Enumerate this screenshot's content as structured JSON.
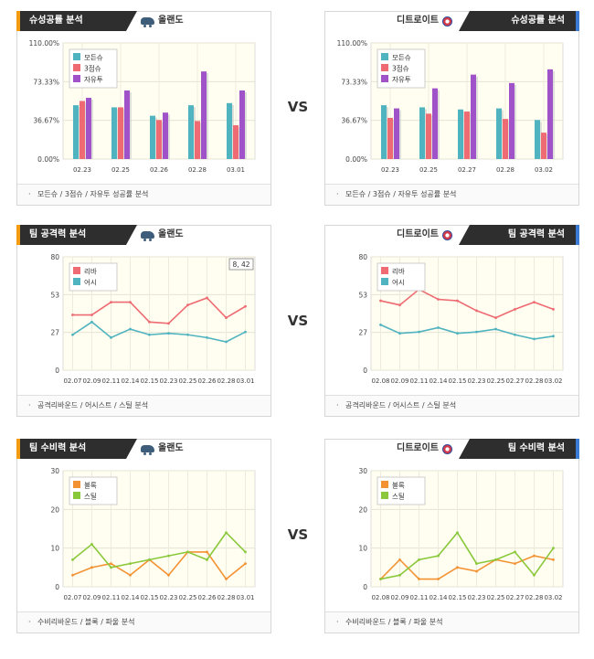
{
  "vs_label": "VS",
  "sections": [
    {
      "key": "success",
      "left": {
        "title": "슈성공률 분석",
        "team": "올랜도",
        "team_icon": "car-icon",
        "footer": "모든슈 / 3점슈 / 자유투 성공률 분석"
      },
      "right": {
        "title": "슈성공률 분석",
        "team": "디트로이트",
        "team_icon": "flag-icon",
        "footer": "모든슈 / 3점슈 / 자유투 성공률 분석"
      }
    },
    {
      "key": "offense",
      "left": {
        "title": "팀 공격력 분석",
        "team": "올랜도",
        "team_icon": "car-icon",
        "footer": "공격리바운드 / 어시스트 / 스틸 분석",
        "tooltip": "8, 42"
      },
      "right": {
        "title": "팀 공격력 분석",
        "team": "디트로이트",
        "team_icon": "flag-icon",
        "footer": "공격리바운드 / 어시스트 / 스틸 분석"
      }
    },
    {
      "key": "defense",
      "left": {
        "title": "팀 수비력 분석",
        "team": "올랜도",
        "team_icon": "car-icon",
        "footer": "수비리바운드 / 블록 / 파울 분석"
      },
      "right": {
        "title": "팀 수비력 분석",
        "team": "디트로이트",
        "team_icon": "flag-icon",
        "footer": "수비리바운드 / 블록 / 파울 분석"
      }
    }
  ],
  "chart_data": [
    {
      "id": "success-left",
      "type": "bar",
      "categories": [
        "02.23",
        "02.25",
        "02.26",
        "02.28",
        "03.01"
      ],
      "ylim": [
        0,
        110
      ],
      "y_ticks": [
        "0.00%",
        "36.67%",
        "73.33%",
        "110.00%"
      ],
      "legend_position": "top-left",
      "series": [
        {
          "name": "모든슈",
          "color": "#4fb3c0",
          "values": [
            51,
            49,
            41,
            51,
            53
          ]
        },
        {
          "name": "3점슈",
          "color": "#ee6b73",
          "values": [
            55,
            49,
            37,
            36,
            32
          ]
        },
        {
          "name": "자유투",
          "color": "#a052c9",
          "values": [
            58,
            65,
            44,
            83,
            65
          ]
        }
      ]
    },
    {
      "id": "success-right",
      "type": "bar",
      "categories": [
        "02.23",
        "02.25",
        "02.27",
        "02.28",
        "03.02"
      ],
      "ylim": [
        0,
        110
      ],
      "y_ticks": [
        "0.00%",
        "36.67%",
        "73.33%",
        "110.00%"
      ],
      "legend_position": "top-left",
      "series": [
        {
          "name": "모든슈",
          "color": "#4fb3c0",
          "values": [
            51,
            49,
            47,
            48,
            37
          ]
        },
        {
          "name": "3점슈",
          "color": "#ee6b73",
          "values": [
            39,
            43,
            45,
            38,
            25
          ]
        },
        {
          "name": "자유투",
          "color": "#a052c9",
          "values": [
            48,
            67,
            80,
            72,
            85
          ]
        }
      ]
    },
    {
      "id": "offense-left",
      "type": "line",
      "categories": [
        "02.07",
        "02.09",
        "02.11",
        "02.14",
        "02.15",
        "02.23",
        "02.25",
        "02.26",
        "02.28",
        "03.01"
      ],
      "ylim": [
        0,
        80
      ],
      "y_ticks": [
        "0",
        "27",
        "53",
        "80"
      ],
      "legend_position": "top-left",
      "series": [
        {
          "name": "리바",
          "color": "#ee6b73",
          "values": [
            39,
            39,
            48,
            48,
            34,
            33,
            46,
            51,
            37,
            45
          ]
        },
        {
          "name": "어시",
          "color": "#4fb3c0",
          "values": [
            25,
            34,
            23,
            29,
            25,
            26,
            25,
            23,
            20,
            27
          ]
        }
      ]
    },
    {
      "id": "offense-right",
      "type": "line",
      "categories": [
        "02.08",
        "02.09",
        "02.11",
        "02.14",
        "02.15",
        "02.23",
        "02.25",
        "02.27",
        "02.28",
        "03.02"
      ],
      "ylim": [
        0,
        80
      ],
      "y_ticks": [
        "0",
        "27",
        "53",
        "80"
      ],
      "legend_position": "top-left",
      "series": [
        {
          "name": "리바",
          "color": "#ee6b73",
          "values": [
            49,
            46,
            57,
            50,
            49,
            42,
            37,
            43,
            48,
            43
          ]
        },
        {
          "name": "어시",
          "color": "#4fb3c0",
          "values": [
            32,
            26,
            27,
            30,
            26,
            27,
            29,
            25,
            22,
            24
          ]
        }
      ]
    },
    {
      "id": "defense-left",
      "type": "line",
      "categories": [
        "02.07",
        "02.09",
        "02.11",
        "02.14",
        "02.15",
        "02.23",
        "02.25",
        "02.26",
        "02.28",
        "03.01"
      ],
      "ylim": [
        0,
        30
      ],
      "y_ticks": [
        "0",
        "10",
        "20",
        "30"
      ],
      "legend_position": "top-left",
      "series": [
        {
          "name": "블록",
          "color": "#f39233",
          "values": [
            3,
            5,
            6,
            3,
            7,
            3,
            9,
            9,
            2,
            6
          ]
        },
        {
          "name": "스틸",
          "color": "#8ac83b",
          "values": [
            7,
            11,
            5,
            6,
            7,
            8,
            9,
            7,
            14,
            9
          ]
        }
      ]
    },
    {
      "id": "defense-right",
      "type": "line",
      "categories": [
        "02.08",
        "02.09",
        "02.11",
        "02.14",
        "02.15",
        "02.23",
        "02.25",
        "02.27",
        "02.28",
        "03.02"
      ],
      "ylim": [
        0,
        30
      ],
      "y_ticks": [
        "0",
        "10",
        "20",
        "30"
      ],
      "legend_position": "top-left",
      "series": [
        {
          "name": "블록",
          "color": "#f39233",
          "values": [
            2,
            7,
            2,
            2,
            5,
            4,
            7,
            6,
            8,
            7
          ]
        },
        {
          "name": "스틸",
          "color": "#8ac83b",
          "values": [
            2,
            3,
            7,
            8,
            14,
            6,
            7,
            9,
            3,
            10
          ]
        }
      ]
    }
  ]
}
